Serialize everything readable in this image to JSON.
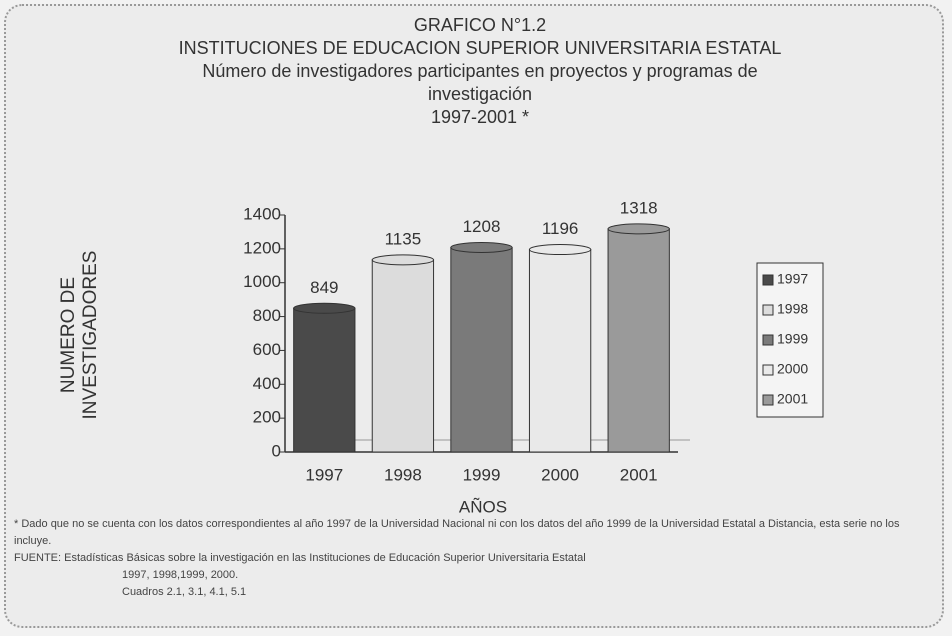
{
  "chart_data": {
    "type": "bar",
    "title": "GRAFICO N°1.2",
    "subtitle": [
      "INSTITUCIONES DE EDUCACION SUPERIOR UNIVERSITARIA ESTATAL",
      "Número de investigadores participantes en proyectos y programas de investigación",
      "1997-2001 *"
    ],
    "ylabel": "NUMERO DE INVESTIGADORES",
    "xlabel": "AÑOS",
    "categories": [
      "1997",
      "1998",
      "1999",
      "2000",
      "2001"
    ],
    "values": [
      849,
      1135,
      1208,
      1196,
      1318
    ],
    "colors": [
      "#4a4a4a",
      "#dcdcdc",
      "#7a7a7a",
      "#e9e9e9",
      "#9a9a9a"
    ],
    "ylim": [
      0,
      1400
    ],
    "yticks": [
      0,
      200,
      400,
      600,
      800,
      1000,
      1200,
      1400
    ],
    "grid": false,
    "legend": "right",
    "notes": [
      "* Dado que no se cuenta con los datos correspondientes al año 1997 de la Universidad Nacional ni con los datos del año 1999 de la Universidad Estatal a Distancia, esta serie no los incluye.",
      "FUENTE: Estadísticas Básicas sobre la investigación en las Instituciones de Educación Superior Universitaria Estatal",
      "1997, 1998,1999, 2000.",
      "Cuadros 2.1, 3.1, 4.1, 5.1"
    ]
  }
}
